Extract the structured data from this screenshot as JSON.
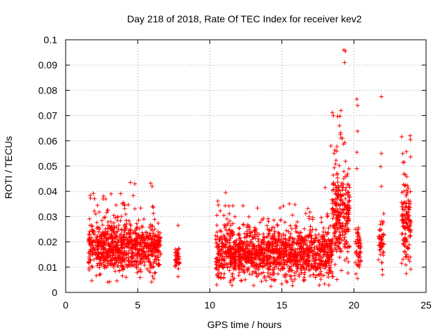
{
  "chart_data": {
    "type": "scatter",
    "title": "Day 218 of 2018, Rate Of TEC Index for receiver kev2",
    "xlabel": "GPS time / hours",
    "ylabel": "ROTI / TECUs",
    "xlim": [
      0,
      25
    ],
    "ylim": [
      0,
      0.1
    ],
    "xticks": [
      0,
      5,
      10,
      15,
      20,
      25
    ],
    "yticks": [
      0,
      0.01,
      0.02,
      0.03,
      0.04,
      0.05,
      0.06,
      0.07,
      0.08,
      0.09,
      0.1
    ],
    "xtick_labels": [
      "0",
      "5",
      "10",
      "15",
      "20",
      "25"
    ],
    "ytick_labels": [
      "0",
      "0.01",
      "0.02",
      "0.03",
      "0.04",
      "0.05",
      "0.06",
      "0.07",
      "0.08",
      "0.09",
      "0.1"
    ],
    "grid": true,
    "marker": "+",
    "color": "#ff0000",
    "clusters": [
      {
        "x_range": [
          1.6,
          6.6
        ],
        "y_min": 0.004,
        "y_typical_max": 0.028,
        "n": 900
      },
      {
        "x_range": [
          7.6,
          7.9
        ],
        "y_min": 0.004,
        "y_typical_max": 0.02,
        "n": 40
      },
      {
        "x_range": [
          10.4,
          18.5
        ],
        "y_min": 0.002,
        "y_typical_max": 0.026,
        "n": 1400
      },
      {
        "x_range": [
          18.5,
          19.7
        ],
        "y_min": 0.005,
        "y_typical_max": 0.05,
        "n": 280
      },
      {
        "x_range": [
          20.1,
          20.5
        ],
        "y_min": 0.005,
        "y_typical_max": 0.026,
        "n": 50
      },
      {
        "x_range": [
          21.7,
          22.1
        ],
        "y_min": 0.005,
        "y_typical_max": 0.03,
        "n": 50
      },
      {
        "x_range": [
          23.3,
          24.0
        ],
        "y_min": 0.003,
        "y_typical_max": 0.045,
        "n": 130
      }
    ],
    "notable_points": [
      {
        "x": 19.3,
        "y": 0.096
      },
      {
        "x": 19.4,
        "y": 0.0955
      },
      {
        "x": 19.35,
        "y": 0.091
      },
      {
        "x": 21.9,
        "y": 0.0775
      },
      {
        "x": 20.2,
        "y": 0.0765
      },
      {
        "x": 20.25,
        "y": 0.074
      },
      {
        "x": 18.5,
        "y": 0.0712
      },
      {
        "x": 19.1,
        "y": 0.072
      },
      {
        "x": 20.25,
        "y": 0.0638
      },
      {
        "x": 23.9,
        "y": 0.062
      },
      {
        "x": 23.92,
        "y": 0.0605
      },
      {
        "x": 19.0,
        "y": 0.066
      },
      {
        "x": 19.2,
        "y": 0.061
      },
      {
        "x": 18.4,
        "y": 0.058
      },
      {
        "x": 20.2,
        "y": 0.0555
      },
      {
        "x": 21.9,
        "y": 0.055
      },
      {
        "x": 23.4,
        "y": 0.0515
      },
      {
        "x": 21.85,
        "y": 0.0498
      },
      {
        "x": 20.2,
        "y": 0.049
      },
      {
        "x": 4.5,
        "y": 0.0435
      },
      {
        "x": 4.8,
        "y": 0.043
      },
      {
        "x": 5.9,
        "y": 0.0432
      },
      {
        "x": 6.0,
        "y": 0.042
      },
      {
        "x": 21.9,
        "y": 0.042
      },
      {
        "x": 11.1,
        "y": 0.0395
      },
      {
        "x": 2.6,
        "y": 0.037
      },
      {
        "x": 18.0,
        "y": 0.0415
      }
    ]
  }
}
